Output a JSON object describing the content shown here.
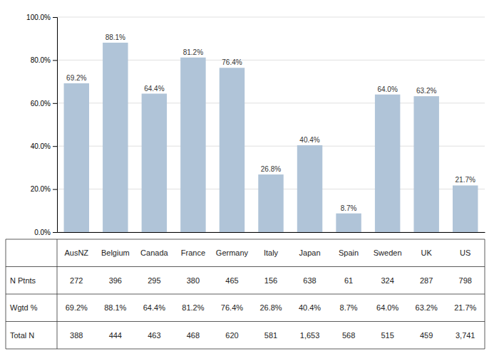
{
  "chart_data": {
    "type": "bar",
    "categories": [
      "AusNZ",
      "Belgium",
      "Canada",
      "France",
      "Germany",
      "Italy",
      "Japan",
      "Spain",
      "Sweden",
      "UK",
      "US"
    ],
    "values": [
      69.2,
      88.1,
      64.4,
      81.2,
      76.4,
      26.8,
      40.4,
      8.7,
      64.0,
      63.2,
      21.7
    ],
    "value_labels": [
      "69.2%",
      "88.1%",
      "64.4%",
      "81.2%",
      "76.4%",
      "26.8%",
      "40.4%",
      "8.7%",
      "64.0%",
      "63.2%",
      "21.7%"
    ],
    "data_labels": true,
    "color": "#b0c4d8",
    "ylim": [
      0,
      100
    ],
    "yticks": [
      {
        "value": 0,
        "label": "0.0%"
      },
      {
        "value": 20,
        "label": "20.0%"
      },
      {
        "value": 40,
        "label": "40.0%"
      },
      {
        "value": 60,
        "label": "60.0%"
      },
      {
        "value": 80,
        "label": "80.0%"
      },
      {
        "value": 100,
        "label": "100.0%"
      }
    ],
    "grid": true,
    "table": [
      {
        "name": "N Ptnts",
        "values": [
          272,
          396,
          295,
          380,
          465,
          156,
          638,
          61,
          324,
          287,
          798
        ]
      },
      {
        "name": "Wgtd %",
        "values": [
          69.2,
          88.1,
          64.4,
          81.2,
          76.4,
          26.8,
          40.4,
          8.7,
          64.0,
          63.2,
          21.7
        ],
        "value_labels": [
          "69.2%",
          "88.1%",
          "64.4%",
          "81.2%",
          "76.4%",
          "26.8%",
          "40.4%",
          "8.7%",
          "64.0%",
          "63.2%",
          "21.7%"
        ]
      },
      {
        "name": "Total N",
        "values": [
          388,
          444,
          463,
          468,
          620,
          581,
          1653,
          568,
          515,
          459,
          3741
        ],
        "value_labels": [
          "388",
          "444",
          "463",
          "468",
          "620",
          "581",
          "1,653",
          "568",
          "515",
          "459",
          "3,741"
        ]
      }
    ]
  }
}
